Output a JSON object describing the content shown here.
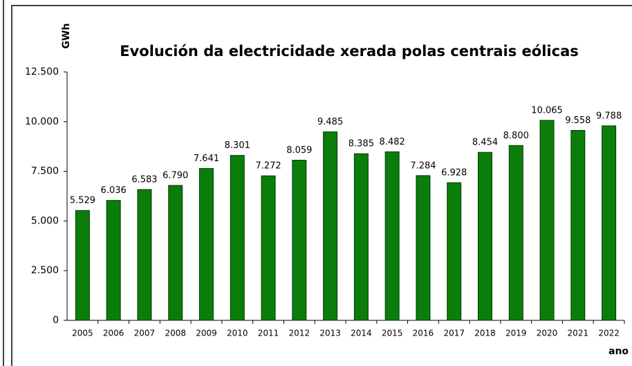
{
  "chart_data": {
    "type": "bar",
    "title": "Evolución da electricidade xerada polas centrais eólicas",
    "y_label": "GWh",
    "x_label": "ano",
    "categories": [
      "2005",
      "2006",
      "2007",
      "2008",
      "2009",
      "2010",
      "2011",
      "2012",
      "2013",
      "2014",
      "2015",
      "2016",
      "2017",
      "2018",
      "2019",
      "2020",
      "2021",
      "2022"
    ],
    "values": [
      5529,
      6036,
      6583,
      6790,
      7641,
      8301,
      7272,
      8059,
      9485,
      8385,
      8482,
      7284,
      6928,
      8454,
      8800,
      10065,
      9558,
      9788
    ],
    "value_labels": [
      "5.529",
      "6.036",
      "6.583",
      "6.790",
      "7.641",
      "8.301",
      "7.272",
      "8.059",
      "9.485",
      "8.385",
      "8.482",
      "7.284",
      "6.928",
      "8.454",
      "8.800",
      "10.065",
      "9.558",
      "9.788"
    ],
    "color": "#0a7d0a",
    "ylim": [
      0,
      12500
    ],
    "yticks": [
      0,
      {
        "value": 2500,
        "label": "2.500"
      },
      {
        "value": 5000,
        "label": "5.000"
      },
      {
        "value": 7500,
        "label": "7.500"
      },
      {
        "value": 10000,
        "label": "10.000"
      },
      {
        "value": 12500,
        "label": "12.500"
      }
    ],
    "grid": false
  }
}
